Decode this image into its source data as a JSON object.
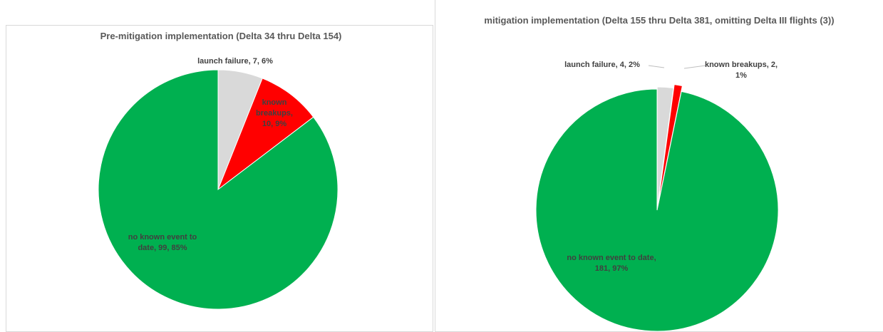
{
  "chart_data": [
    {
      "type": "pie",
      "title": "Pre-mitigation implementation (Delta 34 thru Delta 154)",
      "categories": [
        "launch failure",
        "known breakups",
        "no known event to date"
      ],
      "values": [
        7,
        10,
        99
      ],
      "value_labels": [
        "launch failure, 7, 6%",
        "known breakups, 10, 9%",
        "no known event to date, 99, 85%"
      ],
      "colors": [
        "#d9d9d9",
        "#ff0000",
        "#00b050"
      ]
    },
    {
      "type": "pie",
      "title": "mitigation implementation (Delta 155 thru Delta 381, omitting Delta III flights (3))",
      "categories": [
        "launch failure",
        "known breakups",
        "no known event to date"
      ],
      "values": [
        4,
        2,
        181
      ],
      "value_labels": [
        "launch failure, 4, 2%",
        "known breakups, 2, 1%",
        "no known event to date, 181, 97%"
      ],
      "colors": [
        "#d9d9d9",
        "#ff0000",
        "#00b050"
      ]
    }
  ]
}
